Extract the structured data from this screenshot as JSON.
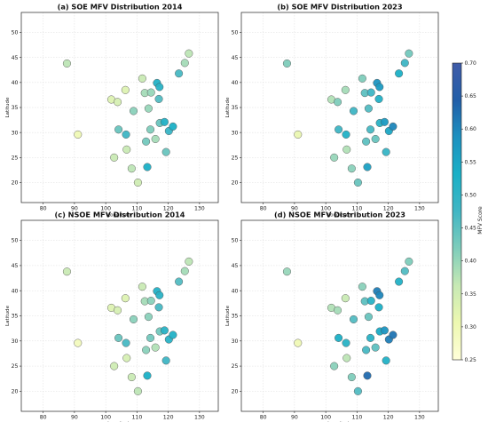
{
  "chart_data": {
    "type": "scatter",
    "x_ticks": [
      80,
      90,
      100,
      110,
      120,
      130
    ],
    "y_ticks": [
      20,
      25,
      30,
      35,
      40,
      45,
      50
    ],
    "xlim": [
      73,
      136
    ],
    "ylim": [
      16,
      54
    ],
    "xlabel": "Longitude",
    "ylabel": "Latitude",
    "grid": true,
    "colorbar": {
      "label": "MFV Score",
      "min": 0.25,
      "max": 0.7,
      "ticks": [
        "0.70",
        "0.65",
        "0.60",
        "0.55",
        "0.50",
        "0.45",
        "0.40",
        "0.35",
        "0.30",
        "0.25"
      ],
      "colors": [
        "#ffffd9",
        "#edf8b1",
        "#c7e9b4",
        "#7fcdbb",
        "#41b6c4",
        "#1ab0c6",
        "#1d91c0",
        "#225ea8",
        "#3f5ba8"
      ]
    },
    "panels": [
      {
        "title": "(a) SOE MFV Distribution 2014",
        "points": [
          {
            "x": 87.6,
            "y": 43.8,
            "v": 0.37
          },
          {
            "x": 91.1,
            "y": 29.6,
            "v": 0.3
          },
          {
            "x": 101.8,
            "y": 36.6,
            "v": 0.33
          },
          {
            "x": 103.8,
            "y": 36.1,
            "v": 0.34
          },
          {
            "x": 106.3,
            "y": 38.5,
            "v": 0.33
          },
          {
            "x": 102.7,
            "y": 25.0,
            "v": 0.36
          },
          {
            "x": 104.1,
            "y": 30.6,
            "v": 0.44
          },
          {
            "x": 106.5,
            "y": 29.6,
            "v": 0.48
          },
          {
            "x": 106.7,
            "y": 26.6,
            "v": 0.36
          },
          {
            "x": 108.3,
            "y": 22.8,
            "v": 0.37
          },
          {
            "x": 110.3,
            "y": 20.0,
            "v": 0.35
          },
          {
            "x": 108.9,
            "y": 34.3,
            "v": 0.41
          },
          {
            "x": 111.7,
            "y": 40.8,
            "v": 0.36
          },
          {
            "x": 112.5,
            "y": 37.9,
            "v": 0.39
          },
          {
            "x": 112.9,
            "y": 28.2,
            "v": 0.43
          },
          {
            "x": 113.3,
            "y": 23.1,
            "v": 0.53
          },
          {
            "x": 113.7,
            "y": 34.8,
            "v": 0.4
          },
          {
            "x": 114.3,
            "y": 30.6,
            "v": 0.42
          },
          {
            "x": 114.5,
            "y": 38.0,
            "v": 0.4
          },
          {
            "x": 115.9,
            "y": 28.7,
            "v": 0.39
          },
          {
            "x": 116.4,
            "y": 39.9,
            "v": 0.52
          },
          {
            "x": 117.2,
            "y": 39.1,
            "v": 0.51
          },
          {
            "x": 117.0,
            "y": 36.7,
            "v": 0.46
          },
          {
            "x": 117.3,
            "y": 31.9,
            "v": 0.44
          },
          {
            "x": 118.8,
            "y": 32.1,
            "v": 0.52
          },
          {
            "x": 119.3,
            "y": 26.1,
            "v": 0.44
          },
          {
            "x": 120.2,
            "y": 30.3,
            "v": 0.49
          },
          {
            "x": 121.5,
            "y": 31.2,
            "v": 0.53
          },
          {
            "x": 123.4,
            "y": 41.8,
            "v": 0.47
          },
          {
            "x": 125.3,
            "y": 43.9,
            "v": 0.39
          },
          {
            "x": 126.6,
            "y": 45.8,
            "v": 0.37
          }
        ]
      },
      {
        "title": "(b) SOE MFV Distribution 2023",
        "points": [
          {
            "x": 87.6,
            "y": 43.8,
            "v": 0.42
          },
          {
            "x": 91.1,
            "y": 29.6,
            "v": 0.31
          },
          {
            "x": 101.8,
            "y": 36.6,
            "v": 0.38
          },
          {
            "x": 103.8,
            "y": 36.1,
            "v": 0.42
          },
          {
            "x": 106.3,
            "y": 38.5,
            "v": 0.39
          },
          {
            "x": 102.7,
            "y": 25.0,
            "v": 0.4
          },
          {
            "x": 104.1,
            "y": 30.6,
            "v": 0.48
          },
          {
            "x": 106.5,
            "y": 29.6,
            "v": 0.52
          },
          {
            "x": 106.7,
            "y": 26.6,
            "v": 0.38
          },
          {
            "x": 108.3,
            "y": 22.8,
            "v": 0.41
          },
          {
            "x": 110.3,
            "y": 20.0,
            "v": 0.44
          },
          {
            "x": 108.9,
            "y": 34.3,
            "v": 0.48
          },
          {
            "x": 111.7,
            "y": 40.8,
            "v": 0.42
          },
          {
            "x": 112.5,
            "y": 37.9,
            "v": 0.45
          },
          {
            "x": 112.9,
            "y": 28.2,
            "v": 0.45
          },
          {
            "x": 113.3,
            "y": 23.1,
            "v": 0.56
          },
          {
            "x": 113.7,
            "y": 34.8,
            "v": 0.46
          },
          {
            "x": 114.3,
            "y": 30.6,
            "v": 0.47
          },
          {
            "x": 114.5,
            "y": 38.0,
            "v": 0.48
          },
          {
            "x": 115.9,
            "y": 28.7,
            "v": 0.44
          },
          {
            "x": 116.4,
            "y": 39.9,
            "v": 0.58
          },
          {
            "x": 117.2,
            "y": 39.1,
            "v": 0.57
          },
          {
            "x": 117.0,
            "y": 36.7,
            "v": 0.52
          },
          {
            "x": 117.3,
            "y": 31.9,
            "v": 0.51
          },
          {
            "x": 118.8,
            "y": 32.1,
            "v": 0.57
          },
          {
            "x": 119.3,
            "y": 26.1,
            "v": 0.49
          },
          {
            "x": 120.2,
            "y": 30.3,
            "v": 0.55
          },
          {
            "x": 121.5,
            "y": 31.2,
            "v": 0.6
          },
          {
            "x": 123.4,
            "y": 41.8,
            "v": 0.53
          },
          {
            "x": 125.3,
            "y": 43.9,
            "v": 0.48
          },
          {
            "x": 126.6,
            "y": 45.8,
            "v": 0.43
          }
        ]
      },
      {
        "title": "(c) NSOE MFV Distribution 2014",
        "points": [
          {
            "x": 87.6,
            "y": 43.8,
            "v": 0.36
          },
          {
            "x": 91.1,
            "y": 29.6,
            "v": 0.29
          },
          {
            "x": 101.8,
            "y": 36.6,
            "v": 0.33
          },
          {
            "x": 103.8,
            "y": 36.1,
            "v": 0.34
          },
          {
            "x": 106.3,
            "y": 38.5,
            "v": 0.33
          },
          {
            "x": 102.7,
            "y": 25.0,
            "v": 0.35
          },
          {
            "x": 104.1,
            "y": 30.6,
            "v": 0.44
          },
          {
            "x": 106.5,
            "y": 29.6,
            "v": 0.47
          },
          {
            "x": 106.7,
            "y": 26.6,
            "v": 0.34
          },
          {
            "x": 108.3,
            "y": 22.8,
            "v": 0.36
          },
          {
            "x": 110.3,
            "y": 20.0,
            "v": 0.37
          },
          {
            "x": 108.9,
            "y": 34.3,
            "v": 0.41
          },
          {
            "x": 111.7,
            "y": 40.8,
            "v": 0.36
          },
          {
            "x": 112.5,
            "y": 37.9,
            "v": 0.39
          },
          {
            "x": 112.9,
            "y": 28.2,
            "v": 0.41
          },
          {
            "x": 113.3,
            "y": 23.1,
            "v": 0.53
          },
          {
            "x": 113.7,
            "y": 34.8,
            "v": 0.41
          },
          {
            "x": 114.3,
            "y": 30.6,
            "v": 0.43
          },
          {
            "x": 114.5,
            "y": 38.0,
            "v": 0.41
          },
          {
            "x": 115.9,
            "y": 28.7,
            "v": 0.38
          },
          {
            "x": 116.4,
            "y": 39.9,
            "v": 0.52
          },
          {
            "x": 117.2,
            "y": 39.1,
            "v": 0.51
          },
          {
            "x": 117.0,
            "y": 36.7,
            "v": 0.47
          },
          {
            "x": 117.3,
            "y": 31.9,
            "v": 0.43
          },
          {
            "x": 118.8,
            "y": 32.1,
            "v": 0.51
          },
          {
            "x": 119.3,
            "y": 26.1,
            "v": 0.48
          },
          {
            "x": 120.2,
            "y": 30.3,
            "v": 0.51
          },
          {
            "x": 121.5,
            "y": 31.2,
            "v": 0.52
          },
          {
            "x": 123.4,
            "y": 41.8,
            "v": 0.46
          },
          {
            "x": 125.3,
            "y": 43.9,
            "v": 0.39
          },
          {
            "x": 126.6,
            "y": 45.8,
            "v": 0.37
          }
        ]
      },
      {
        "title": "(d) NSOE MFV Distribution 2023",
        "points": [
          {
            "x": 87.6,
            "y": 43.8,
            "v": 0.4
          },
          {
            "x": 91.1,
            "y": 29.6,
            "v": 0.3
          },
          {
            "x": 101.8,
            "y": 36.6,
            "v": 0.38
          },
          {
            "x": 103.8,
            "y": 36.1,
            "v": 0.39
          },
          {
            "x": 106.3,
            "y": 38.5,
            "v": 0.36
          },
          {
            "x": 102.7,
            "y": 25.0,
            "v": 0.41
          },
          {
            "x": 104.1,
            "y": 30.6,
            "v": 0.53
          },
          {
            "x": 106.5,
            "y": 29.6,
            "v": 0.51
          },
          {
            "x": 106.7,
            "y": 26.6,
            "v": 0.37
          },
          {
            "x": 108.3,
            "y": 22.8,
            "v": 0.42
          },
          {
            "x": 110.3,
            "y": 20.0,
            "v": 0.46
          },
          {
            "x": 108.9,
            "y": 34.3,
            "v": 0.46
          },
          {
            "x": 111.7,
            "y": 40.8,
            "v": 0.41
          },
          {
            "x": 112.5,
            "y": 37.9,
            "v": 0.45
          },
          {
            "x": 112.9,
            "y": 28.2,
            "v": 0.47
          },
          {
            "x": 113.3,
            "y": 23.1,
            "v": 0.63
          },
          {
            "x": 113.7,
            "y": 34.8,
            "v": 0.44
          },
          {
            "x": 114.3,
            "y": 30.6,
            "v": 0.51
          },
          {
            "x": 114.5,
            "y": 38.0,
            "v": 0.51
          },
          {
            "x": 115.9,
            "y": 28.7,
            "v": 0.45
          },
          {
            "x": 116.4,
            "y": 39.9,
            "v": 0.61
          },
          {
            "x": 117.2,
            "y": 39.1,
            "v": 0.6
          },
          {
            "x": 117.0,
            "y": 36.7,
            "v": 0.53
          },
          {
            "x": 117.3,
            "y": 31.9,
            "v": 0.54
          },
          {
            "x": 118.8,
            "y": 32.1,
            "v": 0.58
          },
          {
            "x": 119.3,
            "y": 26.1,
            "v": 0.52
          },
          {
            "x": 120.2,
            "y": 30.3,
            "v": 0.61
          },
          {
            "x": 121.5,
            "y": 31.2,
            "v": 0.62
          },
          {
            "x": 123.4,
            "y": 41.8,
            "v": 0.52
          },
          {
            "x": 125.3,
            "y": 43.9,
            "v": 0.46
          },
          {
            "x": 126.6,
            "y": 45.8,
            "v": 0.42
          }
        ]
      }
    ]
  }
}
